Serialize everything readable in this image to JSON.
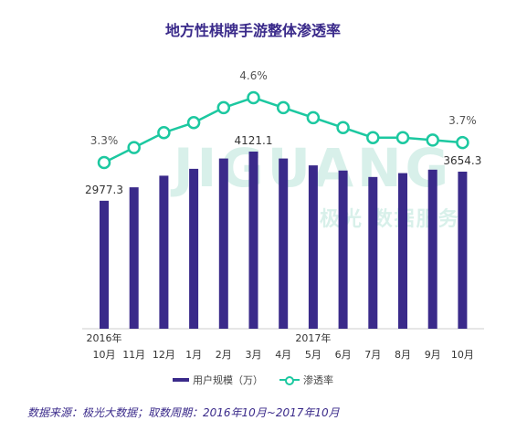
{
  "title": "地方性棋牌手游整体渗透率",
  "source": "数据来源：极光大数据；取数周期：2016年10月~2017年10月",
  "watermark": {
    "brand": "JIGUANG",
    "sub": "极光 数据服务"
  },
  "colors": {
    "bar": "#3a2a8a",
    "line": "#1cc8a0",
    "title": "#3a2a8a"
  },
  "chart_data": {
    "type": "bar",
    "categories": [
      "10月",
      "11月",
      "12月",
      "1月",
      "2月",
      "3月",
      "4月",
      "5月",
      "6月",
      "7月",
      "8月",
      "9月",
      "10月"
    ],
    "year_labels": [
      {
        "index": 0,
        "label": "2016年"
      },
      {
        "index": 7,
        "label": "2017年"
      }
    ],
    "series": [
      {
        "name": "用户规模（万）",
        "type": "bar",
        "values": [
          2977.3,
          3290,
          3560,
          3720,
          3960,
          4121.1,
          3960,
          3800,
          3680,
          3530,
          3620,
          3700,
          3654.3
        ]
      },
      {
        "name": "渗透率",
        "type": "line",
        "values": [
          3.3,
          3.6,
          3.9,
          4.1,
          4.4,
          4.6,
          4.4,
          4.2,
          4.0,
          3.8,
          3.8,
          3.75,
          3.7
        ]
      }
    ],
    "data_labels": {
      "bar": [
        {
          "index": 0,
          "text": "2977.3"
        },
        {
          "index": 5,
          "text": "4121.1"
        },
        {
          "index": 12,
          "text": "3654.3"
        }
      ],
      "line": [
        {
          "index": 0,
          "text": "3.3%"
        },
        {
          "index": 5,
          "text": "4.6%"
        },
        {
          "index": 12,
          "text": "3.7%"
        }
      ]
    },
    "legend": [
      "用户规模（万）",
      "渗透率"
    ],
    "legend_position": "bottom",
    "grid": false
  }
}
